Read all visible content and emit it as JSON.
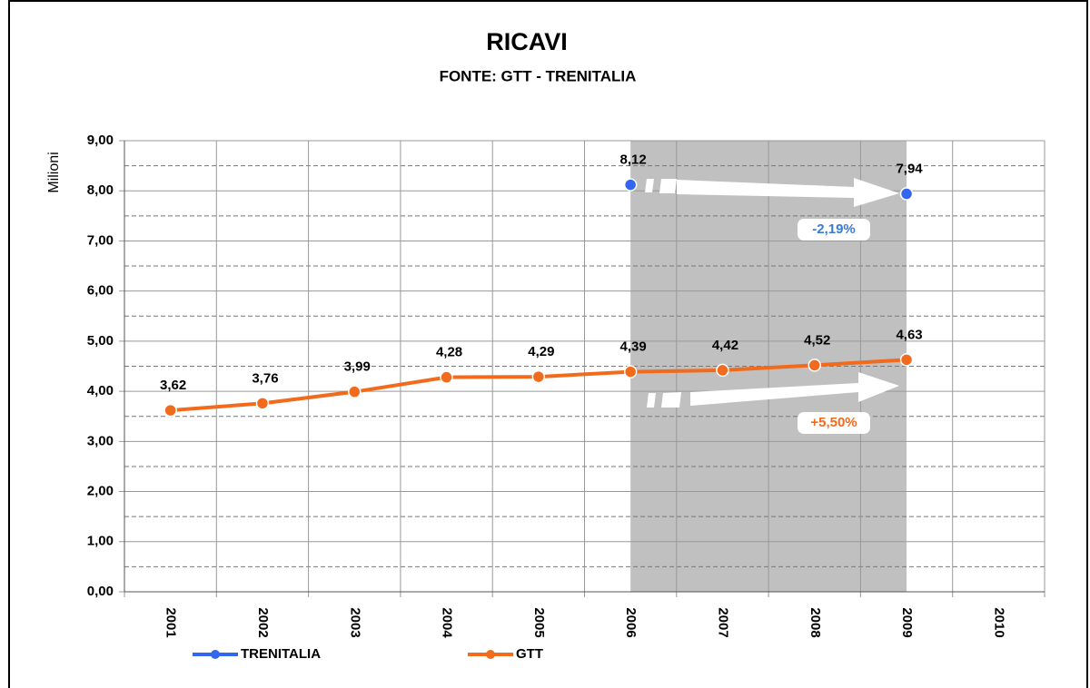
{
  "chart_data": {
    "type": "line",
    "title": "RICAVI",
    "subtitle": "FONTE: GTT - TRENITALIA",
    "y_label": "Milioni",
    "categories": [
      "2001",
      "2002",
      "2003",
      "2004",
      "2005",
      "2006",
      "2007",
      "2008",
      "2009",
      "2010"
    ],
    "series": [
      {
        "name": "TRENITALIA",
        "color": "#3366ee",
        "values": [
          null,
          null,
          null,
          null,
          null,
          8.12,
          null,
          null,
          7.94,
          null
        ],
        "value_labels": [
          null,
          null,
          null,
          null,
          null,
          "8,12",
          null,
          null,
          "7,94",
          null
        ]
      },
      {
        "name": "GTT",
        "color": "#f26a1b",
        "values": [
          3.62,
          3.76,
          3.99,
          4.28,
          4.29,
          4.39,
          4.42,
          4.52,
          4.63,
          null
        ],
        "value_labels": [
          "3,62",
          "3,76",
          "3,99",
          "4,28",
          "4,29",
          "4,39",
          "4,42",
          "4,52",
          "4,63",
          null
        ]
      }
    ],
    "ylim": [
      0,
      9
    ],
    "yticks": [
      {
        "value": 0,
        "label": "0,00"
      },
      {
        "value": 1,
        "label": "1,00"
      },
      {
        "value": 2,
        "label": "2,00"
      },
      {
        "value": 3,
        "label": "3,00"
      },
      {
        "value": 4,
        "label": "4,00"
      },
      {
        "value": 5,
        "label": "5,00"
      },
      {
        "value": 6,
        "label": "6,00"
      },
      {
        "value": 7,
        "label": "7,00"
      },
      {
        "value": 8,
        "label": "8,00"
      },
      {
        "value": 9,
        "label": "9,00"
      }
    ],
    "minor_yticks": [
      0.5,
      1.5,
      2.5,
      3.5,
      4.5,
      5.5,
      6.5,
      7.5,
      8.5
    ],
    "grid": true,
    "highlight": {
      "from": "2006",
      "to": "2009",
      "color": "#c0c0c0"
    },
    "annotations": [
      {
        "text": "-2,19%",
        "color": "#3a7ad8"
      },
      {
        "text": "+5,50%",
        "color": "#f26a1b"
      }
    ],
    "legend": "bottom"
  }
}
